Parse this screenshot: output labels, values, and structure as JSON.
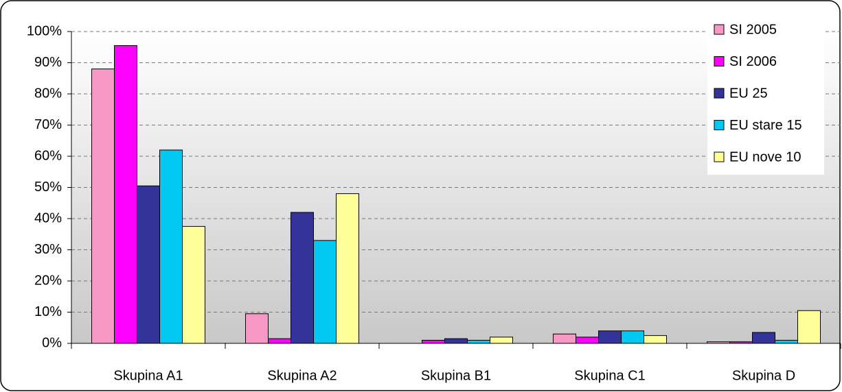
{
  "chart_data": {
    "type": "bar",
    "categories": [
      "Skupina A1",
      "Skupina A2",
      "Skupina B1",
      "Skupina C1",
      "Skupina D"
    ],
    "series": [
      {
        "name": "SI 2005",
        "color": "#f799c4",
        "values": [
          88,
          9.5,
          0,
          3,
          0.5
        ]
      },
      {
        "name": "SI 2006",
        "color": "#ff00ff",
        "values": [
          95.5,
          1.5,
          1,
          2,
          0.5
        ]
      },
      {
        "name": "EU 25",
        "color": "#333399",
        "values": [
          50.5,
          42,
          1.5,
          4,
          3.5
        ]
      },
      {
        "name": "EU stare 15",
        "color": "#00c8f0",
        "values": [
          62,
          33,
          1,
          4,
          1
        ]
      },
      {
        "name": "EU nove 10",
        "color": "#ffff99",
        "values": [
          37.5,
          48,
          2,
          2.5,
          10.5
        ]
      }
    ],
    "ylim": [
      0,
      100
    ],
    "yticks": [
      {
        "value": 0,
        "label": "0%"
      },
      {
        "value": 10,
        "label": "10%"
      },
      {
        "value": 20,
        "label": "20%"
      },
      {
        "value": 30,
        "label": "30%"
      },
      {
        "value": 40,
        "label": "40%"
      },
      {
        "value": 50,
        "label": "50%"
      },
      {
        "value": 60,
        "label": "60%"
      },
      {
        "value": 70,
        "label": "70%"
      },
      {
        "value": 80,
        "label": "80%"
      },
      {
        "value": 90,
        "label": "90%"
      },
      {
        "value": 100,
        "label": "100%"
      }
    ],
    "grid": true,
    "legend": "top-right"
  }
}
